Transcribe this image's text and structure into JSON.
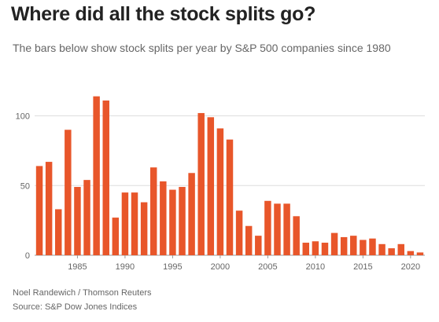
{
  "title": "Where did all the stock splits go?",
  "subtitle": "The bars below show stock splits per year by S&P 500 companies since 1980",
  "credit": "Noel Randewich / Thomson Reuters",
  "source": "Source: S&P Dow Jones Indices",
  "colors": {
    "bar": "#e8562a",
    "grid": "#dddddd",
    "axis": "#999999"
  },
  "chart_data": {
    "type": "bar",
    "title": "Where did all the stock splits go?",
    "subtitle": "The bars below show stock splits per year by S&P 500 companies since 1980",
    "xlabel": "",
    "ylabel": "",
    "categories": [
      1981,
      1982,
      1983,
      1984,
      1985,
      1986,
      1987,
      1988,
      1989,
      1990,
      1991,
      1992,
      1993,
      1994,
      1995,
      1996,
      1997,
      1998,
      1999,
      2000,
      2001,
      2002,
      2003,
      2004,
      2005,
      2006,
      2007,
      2008,
      2009,
      2010,
      2011,
      2012,
      2013,
      2014,
      2015,
      2016,
      2017,
      2018,
      2019,
      2020,
      2021
    ],
    "values": [
      64,
      67,
      33,
      90,
      49,
      54,
      114,
      111,
      27,
      45,
      45,
      38,
      63,
      53,
      47,
      49,
      59,
      102,
      99,
      91,
      83,
      32,
      21,
      14,
      39,
      37,
      37,
      28,
      9,
      10,
      9,
      16,
      13,
      14,
      11,
      12,
      8,
      5,
      8,
      3,
      2
    ],
    "ylim": [
      0,
      120
    ],
    "yticks": [
      0,
      50,
      100
    ],
    "xticks": [
      1985,
      1990,
      1995,
      2000,
      2005,
      2010,
      2015,
      2020
    ],
    "grid": true,
    "legend": "none"
  }
}
